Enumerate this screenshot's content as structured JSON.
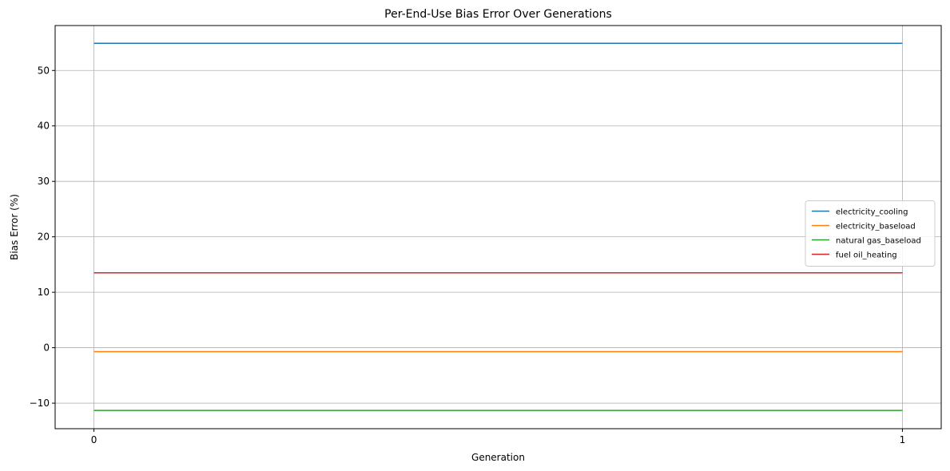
{
  "chart_data": {
    "type": "line",
    "title": "Per-End-Use Bias Error Over Generations",
    "xlabel": "Generation",
    "ylabel": "Bias Error (%)",
    "x": [
      0,
      1
    ],
    "xticks": [
      "0",
      "1"
    ],
    "xlim": [
      -0.048,
      1.048
    ],
    "ylim": [
      -14.6,
      58.1
    ],
    "yticks": [
      "−10",
      "0",
      "10",
      "20",
      "30",
      "40",
      "50"
    ],
    "grid": true,
    "legend_position": "center-right",
    "series": [
      {
        "name": "electricity_cooling",
        "color": "#1f77b4",
        "values": [
          54.9,
          54.9
        ]
      },
      {
        "name": "electricity_baseload",
        "color": "#ff7f0e",
        "values": [
          -0.7,
          -0.7
        ]
      },
      {
        "name": "natural gas_baseload",
        "color": "#2ca02c",
        "values": [
          -11.3,
          -11.3
        ]
      },
      {
        "name": "fuel oil_heating",
        "color": "#d62728",
        "values": [
          13.5,
          13.5
        ]
      }
    ]
  }
}
